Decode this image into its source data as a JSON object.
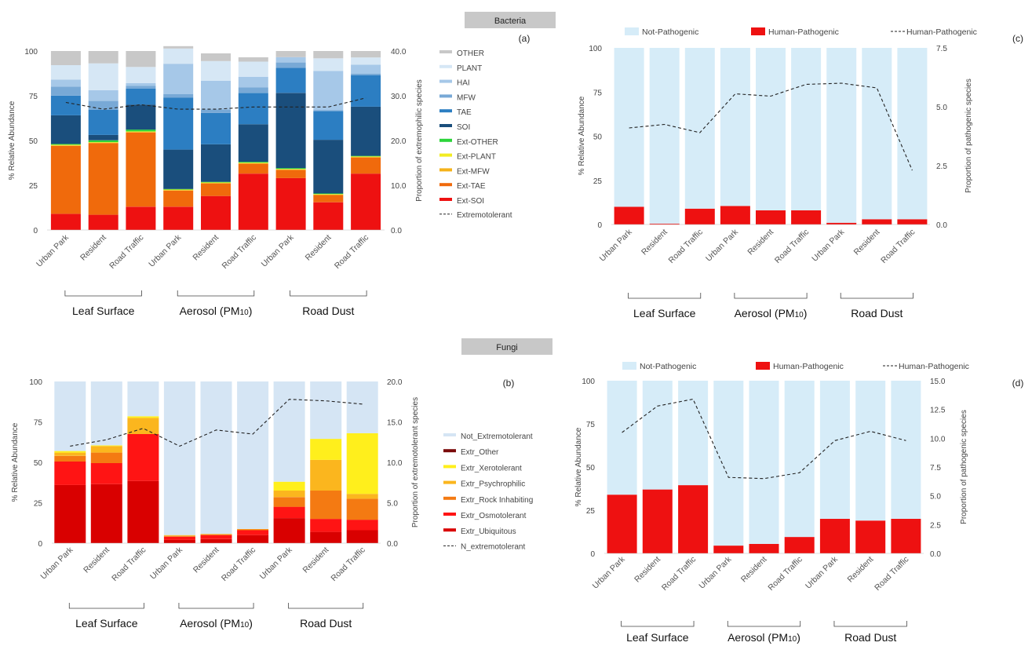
{
  "headers": {
    "bacteria": "Bacteria",
    "fungi": "Fungi"
  },
  "chart_data": [
    {
      "id": "a",
      "panel_label": "(a)",
      "type": "bar",
      "stacked": true,
      "ylabel": "% Relative Abundance",
      "y2label": "Proportion of extremophilic species",
      "ylim": [
        0,
        100
      ],
      "yticks": [
        0,
        25,
        50,
        75,
        100
      ],
      "y2lim": [
        0,
        40
      ],
      "y2ticks": [
        "0.0",
        "10.0",
        "20.0",
        "30.0",
        "40.0"
      ],
      "categories": [
        "Urban Park",
        "Resident",
        "Road Traffic",
        "Urban Park",
        "Resident",
        "Road Traffic",
        "Urban Park",
        "Resident",
        "Road Traffic"
      ],
      "groups": [
        "Leaf Surface",
        "Aerosol (PM10)",
        "Road Dust"
      ],
      "series": [
        {
          "name": "Ext-SOI",
          "color": "#ee1111",
          "values": [
            9,
            8.5,
            13,
            13,
            19,
            31.5,
            29,
            15.5,
            31.5
          ]
        },
        {
          "name": "Ext-TAE",
          "color": "#f06a0c",
          "values": [
            38,
            40,
            41.5,
            9,
            7,
            5.5,
            4.5,
            4,
            9
          ]
        },
        {
          "name": "Ext-MFW",
          "color": "#f5b21a",
          "values": [
            0.3,
            0.3,
            0.3,
            0.3,
            0.3,
            0.3,
            0.3,
            0.3,
            0.3
          ]
        },
        {
          "name": "Ext-PLANT",
          "color": "#f2ec22",
          "values": [
            0.3,
            0.3,
            0.3,
            0.3,
            0.3,
            0.3,
            0.3,
            0.3,
            0.3
          ]
        },
        {
          "name": "Ext-OTHER",
          "color": "#2cd43a",
          "values": [
            0.5,
            1,
            1,
            0.3,
            0.3,
            0.5,
            0.5,
            0.3,
            0.3
          ]
        },
        {
          "name": "SOI",
          "color": "#1a4e7c",
          "values": [
            16,
            3,
            14,
            22,
            21,
            21,
            42,
            30,
            27.5
          ]
        },
        {
          "name": "TAE",
          "color": "#2c7ec2",
          "values": [
            11,
            14,
            9,
            29,
            17.5,
            17.5,
            14,
            16,
            17.5
          ]
        },
        {
          "name": "MFW",
          "color": "#78a9d6",
          "values": [
            5,
            5,
            1.5,
            2,
            2,
            3,
            3,
            0.5,
            1
          ]
        },
        {
          "name": "HAI",
          "color": "#a6c8e8",
          "values": [
            4,
            6,
            1.5,
            17,
            16,
            6,
            3,
            22,
            5
          ]
        },
        {
          "name": "PLANT",
          "color": "#d6e7f5",
          "values": [
            8,
            15,
            9,
            8.5,
            11,
            8.5,
            0,
            7,
            4
          ]
        },
        {
          "name": "OTHER",
          "color": "#c8c8c8",
          "values": [
            7.9,
            6.9,
            8.9,
            1.3,
            4.3,
            2.4,
            3.4,
            4.1,
            3.6
          ]
        }
      ],
      "line": {
        "name": "Extremotolerant",
        "values": [
          28.5,
          27,
          28,
          27,
          27,
          27.5,
          27.5,
          27.5,
          29.5
        ]
      }
    },
    {
      "id": "b",
      "panel_label": "(b)",
      "type": "bar",
      "stacked": true,
      "ylabel": "% Relative Abundance",
      "y2label": "Proportion of extremotolerant species",
      "ylim": [
        0,
        100
      ],
      "yticks": [
        0,
        25,
        50,
        75,
        100
      ],
      "y2lim": [
        0,
        20
      ],
      "y2ticks": [
        "0.0",
        "5.0",
        "10.0",
        "15.0",
        "20.0"
      ],
      "categories": [
        "Urban Park",
        "Resident",
        "Road Traffic",
        "Urban Park",
        "Resident",
        "Road Traffic",
        "Urban Park",
        "Resident",
        "Road Traffic"
      ],
      "groups": [
        "Leaf Surface",
        "Aerosol (PM10)",
        "Road Dust"
      ],
      "series": [
        {
          "name": "Extr_Ubiquitous",
          "color": "#d90000",
          "values": [
            36,
            36.5,
            38.5,
            2,
            2.5,
            5,
            15.5,
            7,
            8
          ]
        },
        {
          "name": "Extr_Osmotolerant",
          "color": "#ff1414",
          "values": [
            14.5,
            13,
            29,
            2,
            2.5,
            3,
            7,
            8,
            6.5
          ]
        },
        {
          "name": "Extr_Rock Inhabiting",
          "color": "#f47a12",
          "values": [
            3.5,
            6.5,
            0,
            0.5,
            0.5,
            0.5,
            6,
            17.5,
            13
          ]
        },
        {
          "name": "Extr_Psychrophilic",
          "color": "#fbb61e",
          "values": [
            2,
            4,
            10,
            0.5,
            0.3,
            0.3,
            4,
            19,
            3
          ]
        },
        {
          "name": "Extr_Xerotolerant",
          "color": "#ffef1c",
          "values": [
            1,
            0.5,
            1,
            0,
            0,
            0,
            5.5,
            13,
            37.5
          ]
        },
        {
          "name": "Extr_Other",
          "color": "#7a0a0a",
          "values": [
            0,
            0,
            0,
            0,
            0,
            0,
            0,
            0,
            0
          ]
        },
        {
          "name": "Not_Extremotolerant",
          "color": "#d5e5f4",
          "values": [
            43,
            39.5,
            21.5,
            95,
            94.2,
            91.2,
            62,
            35.5,
            32
          ]
        }
      ],
      "line": {
        "name": "N_extremotolerant",
        "values": [
          12,
          12.8,
          14.2,
          12,
          14,
          13.5,
          17.8,
          17.6,
          17.2
        ]
      }
    },
    {
      "id": "c",
      "panel_label": "(c)",
      "type": "bar",
      "stacked": true,
      "ylabel": "% Relative Abundance",
      "y2label": "Proportion of pathogenic species",
      "ylim": [
        0,
        100
      ],
      "yticks": [
        0,
        25,
        50,
        75,
        100
      ],
      "y2lim": [
        0,
        7.5
      ],
      "y2ticks": [
        "0.0",
        "2.5",
        "5.0",
        "7.5"
      ],
      "categories": [
        "Urban Park",
        "Resident",
        "Road Traffic",
        "Urban Park",
        "Resident",
        "Road Traffic",
        "Urban Park",
        "Resident",
        "Road Traffic"
      ],
      "groups": [
        "Leaf Surface",
        "Aerosol (PM10)",
        "Road Dust"
      ],
      "series": [
        {
          "name": "Human-Pathogenic",
          "color": "#ee1111",
          "values": [
            10,
            0.5,
            9,
            10.5,
            8,
            8,
            1,
            3,
            3
          ]
        },
        {
          "name": "Not-Pathogenic",
          "color": "#d6ecf8",
          "values": [
            90,
            99.5,
            91,
            89.5,
            92,
            92,
            99,
            97,
            97
          ]
        }
      ],
      "line": {
        "name": "Human-Pathogenic",
        "values": [
          4.1,
          4.25,
          3.9,
          5.55,
          5.45,
          5.95,
          6.0,
          5.8,
          2.3
        ]
      }
    },
    {
      "id": "d",
      "panel_label": "(d)",
      "type": "bar",
      "stacked": true,
      "ylabel": "% Relative Abundance",
      "y2label": "Proportion of pathogenic species",
      "ylim": [
        0,
        100
      ],
      "yticks": [
        0,
        25,
        50,
        75,
        100
      ],
      "y2lim": [
        0,
        15
      ],
      "y2ticks": [
        "0.0",
        "2.5",
        "5.0",
        "7.5",
        "10.0",
        "12.5",
        "15.0"
      ],
      "categories": [
        "Urban Park",
        "Resident",
        "Road Traffic",
        "Urban Park",
        "Resident",
        "Road Traffic",
        "Urban Park",
        "Resident",
        "Road Traffic"
      ],
      "groups": [
        "Leaf Surface",
        "Aerosol (PM10)",
        "Road Dust"
      ],
      "series": [
        {
          "name": "Human-Pathogenic",
          "color": "#ee1111",
          "values": [
            34,
            37,
            39.5,
            4.5,
            5.5,
            9.5,
            20,
            19,
            20
          ]
        },
        {
          "name": "Not-Pathogenic",
          "color": "#d6ecf8",
          "values": [
            66,
            63,
            60.5,
            95.5,
            94.5,
            90.5,
            80,
            81,
            80
          ]
        }
      ],
      "line": {
        "name": "Human-Pathogenic",
        "values": [
          10.5,
          12.8,
          13.4,
          6.6,
          6.5,
          7.0,
          9.8,
          10.6,
          9.8
        ]
      }
    }
  ]
}
